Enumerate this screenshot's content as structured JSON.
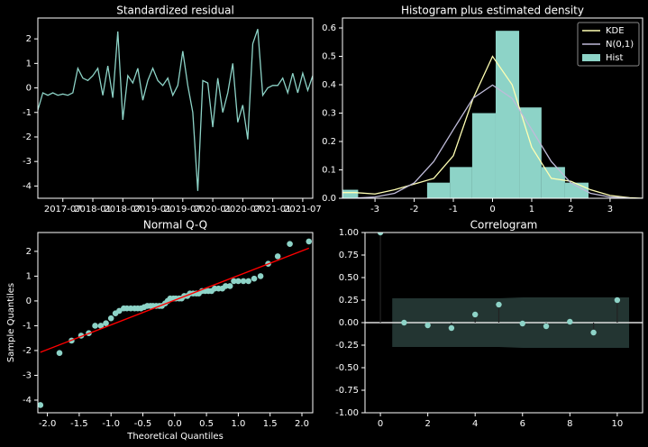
{
  "chart_data": [
    {
      "type": "line",
      "title": "Standardized residual",
      "color": "#8dd3c7",
      "x": [
        "2017-02",
        "2017-03",
        "2017-04",
        "2017-05",
        "2017-06",
        "2017-07",
        "2017-08",
        "2017-09",
        "2017-10",
        "2017-11",
        "2017-12",
        "2018-01",
        "2018-02",
        "2018-03",
        "2018-04",
        "2018-05",
        "2018-06",
        "2018-07",
        "2018-08",
        "2018-09",
        "2018-10",
        "2018-11",
        "2018-12",
        "2019-01",
        "2019-02",
        "2019-03",
        "2019-04",
        "2019-05",
        "2019-06",
        "2019-07",
        "2019-08",
        "2019-09",
        "2019-10",
        "2019-11",
        "2019-12",
        "2020-01",
        "2020-02",
        "2020-03",
        "2020-04",
        "2020-05",
        "2020-06",
        "2020-07",
        "2020-08",
        "2020-09",
        "2020-10",
        "2020-11",
        "2020-12",
        "2021-01",
        "2021-02",
        "2021-03",
        "2021-04",
        "2021-05",
        "2021-06",
        "2021-07",
        "2021-08",
        "2021-09"
      ],
      "values": [
        -0.9,
        -0.2,
        -0.3,
        -0.2,
        -0.3,
        -0.25,
        -0.3,
        -0.2,
        0.8,
        0.4,
        0.3,
        0.5,
        0.8,
        -0.3,
        0.9,
        -0.4,
        2.3,
        -1.3,
        0.5,
        0.2,
        0.8,
        -0.5,
        0.3,
        0.8,
        0.3,
        0.1,
        0.4,
        -0.3,
        0.1,
        1.5,
        0.1,
        -1.0,
        -4.2,
        0.3,
        0.2,
        -1.6,
        0.4,
        -1.0,
        -0.2,
        1.0,
        -1.4,
        -0.7,
        -2.1,
        1.8,
        2.4,
        -0.3,
        0.0,
        0.1,
        0.1,
        0.4,
        -0.2,
        0.6,
        -0.2,
        0.6,
        -0.1,
        0.5
      ],
      "xticks": [
        "2017-07",
        "2018-01",
        "2018-07",
        "2019-01",
        "2019-07",
        "2020-01",
        "2020-07",
        "2021-01",
        "2021-07"
      ],
      "ylim": [
        -4.5,
        2.85
      ],
      "yticks": [
        -4,
        -3,
        -2,
        -1,
        0,
        1,
        2
      ]
    },
    {
      "type": "histogram",
      "title": "Histogram plus estimated density",
      "legend": "upper right",
      "series": [
        {
          "name": "KDE",
          "color": "#ffffb3",
          "x": [
            -3.83,
            -3.5,
            -3,
            -2.5,
            -2,
            -1.5,
            -1,
            -0.5,
            0,
            0.5,
            1,
            1.5,
            2,
            2.5,
            3,
            3.5,
            3.83
          ],
          "values": [
            0.02,
            0.02,
            0.015,
            0.03,
            0.05,
            0.07,
            0.15,
            0.35,
            0.5,
            0.4,
            0.18,
            0.07,
            0.06,
            0.03,
            0.01,
            0.002,
            0.0
          ]
        },
        {
          "name": "N(0,1)",
          "color": "#bfbbd9",
          "x": [
            -3.5,
            -3,
            -2.5,
            -2,
            -1.5,
            -1,
            -0.5,
            0,
            0.5,
            1,
            1.5,
            2,
            2.5,
            3,
            3.5
          ],
          "values": [
            0.0009,
            0.0044,
            0.0175,
            0.054,
            0.1295,
            0.242,
            0.3521,
            0.3989,
            0.3521,
            0.242,
            0.1295,
            0.054,
            0.0175,
            0.0044,
            0.0009
          ]
        },
        {
          "name": "Hist",
          "color": "#8dd3c7",
          "bins": [
            -4.02,
            -3.43,
            -2.84,
            -2.25,
            -1.67,
            -1.09,
            -0.52,
            0.08,
            0.68,
            1.25,
            1.85,
            2.45
          ],
          "values": [
            0.03,
            0,
            0,
            0,
            0.055,
            0.11,
            0.3,
            0.59,
            0.32,
            0.11,
            0.055
          ]
        }
      ],
      "xlim": [
        -3.83,
        3.83
      ],
      "xticks": [
        -3,
        -2,
        -1,
        0,
        1,
        2,
        3
      ],
      "ylim": [
        0,
        0.635
      ],
      "yticks": [
        {
          "value": 0,
          "label": "0.0"
        },
        {
          "value": 0.1,
          "label": "0.1"
        },
        {
          "value": 0.2,
          "label": "0.2"
        },
        {
          "value": 0.3,
          "label": "0.3"
        },
        {
          "value": 0.4,
          "label": "0.4"
        },
        {
          "value": 0.5,
          "label": "0.5"
        },
        {
          "value": 0.6,
          "label": "0.6"
        }
      ]
    },
    {
      "type": "scatter",
      "title": "Normal Q-Q",
      "x_label": "Theoretical Quantiles",
      "y_label": "Sample Quantiles",
      "color": "#8dd3c7",
      "x": [
        -2.11,
        -1.81,
        -1.62,
        -1.47,
        -1.35,
        -1.25,
        -1.16,
        -1.08,
        -1.0,
        -0.93,
        -0.87,
        -0.8,
        -0.75,
        -0.69,
        -0.63,
        -0.58,
        -0.53,
        -0.48,
        -0.43,
        -0.38,
        -0.34,
        -0.29,
        -0.24,
        -0.2,
        -0.15,
        -0.11,
        -0.07,
        -0.02,
        0.02,
        0.07,
        0.11,
        0.15,
        0.2,
        0.24,
        0.29,
        0.34,
        0.38,
        0.43,
        0.48,
        0.53,
        0.58,
        0.63,
        0.69,
        0.75,
        0.8,
        0.87,
        0.93,
        1.0,
        1.08,
        1.16,
        1.25,
        1.35,
        1.47,
        1.62,
        1.81,
        2.11
      ],
      "values": [
        -4.2,
        -2.1,
        -1.6,
        -1.4,
        -1.3,
        -1.0,
        -1.0,
        -0.9,
        -0.7,
        -0.5,
        -0.4,
        -0.3,
        -0.3,
        -0.3,
        -0.3,
        -0.3,
        -0.3,
        -0.25,
        -0.2,
        -0.2,
        -0.2,
        -0.2,
        -0.2,
        -0.2,
        -0.1,
        0.0,
        0.1,
        0.1,
        0.1,
        0.1,
        0.1,
        0.2,
        0.2,
        0.3,
        0.3,
        0.3,
        0.3,
        0.4,
        0.4,
        0.4,
        0.4,
        0.5,
        0.5,
        0.5,
        0.6,
        0.6,
        0.8,
        0.8,
        0.8,
        0.8,
        0.9,
        1.0,
        1.5,
        1.8,
        2.3,
        2.4
      ],
      "reference_line": {
        "color": "#ff0000",
        "x": [
          -2.11,
          2.11
        ],
        "values": [
          -2.07,
          2.13
        ]
      },
      "xlim": [
        -2.15,
        2.17
      ],
      "xticks": [
        {
          "value": -2,
          "label": "-2.0"
        },
        {
          "value": -1.5,
          "label": "-1.5"
        },
        {
          "value": -1,
          "label": "-1.0"
        },
        {
          "value": -0.5,
          "label": "-0.5"
        },
        {
          "value": 0,
          "label": "0.0"
        },
        {
          "value": 0.5,
          "label": "0.5"
        },
        {
          "value": 1,
          "label": "1.0"
        },
        {
          "value": 1.5,
          "label": "1.5"
        },
        {
          "value": 2,
          "label": "2.0"
        }
      ],
      "ylim": [
        -4.51,
        2.76
      ],
      "yticks": [
        -4,
        -3,
        -2,
        -1,
        0,
        1,
        2
      ]
    },
    {
      "type": "stem",
      "title": "Correlogram",
      "color": "#8dd3c7",
      "x": [
        0,
        1,
        2,
        3,
        4,
        5,
        6,
        7,
        8,
        9,
        10
      ],
      "values": [
        1.0,
        0.0,
        -0.03,
        -0.06,
        0.09,
        0.2,
        -0.01,
        -0.04,
        0.01,
        -0.11,
        0.25
      ],
      "confidence_band": {
        "color": "#8dd3c7",
        "x": [
          0.5,
          1,
          2,
          3,
          4,
          5,
          6,
          7,
          8,
          9,
          10,
          10.5
        ],
        "upper": [
          0.27,
          0.27,
          0.27,
          0.27,
          0.27,
          0.27,
          0.28,
          0.28,
          0.28,
          0.28,
          0.28,
          0.28
        ],
        "lower": [
          -0.27,
          -0.27,
          -0.27,
          -0.27,
          -0.27,
          -0.27,
          -0.28,
          -0.28,
          -0.28,
          -0.28,
          -0.28,
          -0.28
        ]
      },
      "xlim": [
        -0.65,
        11.07
      ],
      "xticks": [
        0,
        2,
        4,
        6,
        8,
        10
      ],
      "ylim": [
        -1,
        1
      ],
      "yticks": [
        {
          "value": -1,
          "label": "-1.00"
        },
        {
          "value": -0.75,
          "label": "-0.75"
        },
        {
          "value": -0.5,
          "label": "-0.50"
        },
        {
          "value": -0.25,
          "label": "-0.25"
        },
        {
          "value": 0,
          "label": "0.00"
        },
        {
          "value": 0.25,
          "label": "0.25"
        },
        {
          "value": 0.5,
          "label": "0.50"
        },
        {
          "value": 0.75,
          "label": "0.75"
        },
        {
          "value": 1,
          "label": "1.00"
        }
      ]
    }
  ]
}
